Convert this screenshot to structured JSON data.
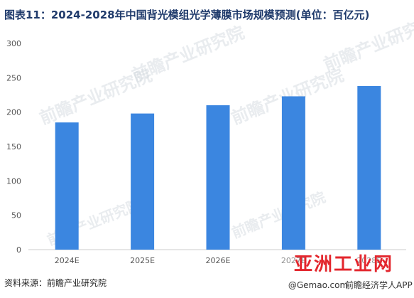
{
  "title": "图表11：2024-2028年中国背光模组光学薄膜市场规模预测(单位：百亿元)",
  "source": "资料来源：前瞻产业研究院",
  "watermark": {
    "brand": "前瞻产业研究院",
    "site": "亚洲工业网",
    "tag": "@Gemao.com",
    "app": "前瞻经济学人APP"
  },
  "colors": {
    "bar": "#3b86e0",
    "axis": "#cccccc",
    "title": "#1f3a6b"
  },
  "chart_data": {
    "type": "bar",
    "title": "2024-2028年中国背光模组光学薄膜市场规模预测(单位：百亿元)",
    "categories": [
      "2024E",
      "2025E",
      "2026E",
      "2027E",
      "2028E"
    ],
    "series": [
      {
        "values": [
          185,
          198,
          210,
          223,
          238
        ]
      }
    ],
    "ylim": [
      0,
      300
    ],
    "yticks": [
      0,
      50,
      100,
      150,
      200,
      250,
      300
    ],
    "grid": false,
    "legend": "none"
  }
}
